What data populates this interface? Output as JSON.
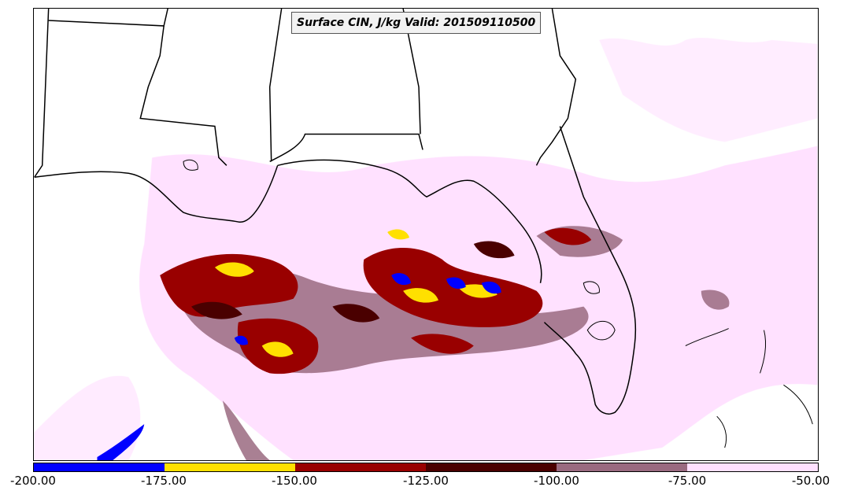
{
  "map": {
    "title": "Surface CIN, J/kg Valid: 201509110500",
    "legend": {
      "ticks": [
        "-200.00",
        "-175.00",
        "-150.00",
        "-125.00",
        "-100.00",
        "-75.00",
        "-50.00"
      ],
      "bins": [
        {
          "from": -200,
          "to": -175,
          "color": "#0000ff"
        },
        {
          "from": -175,
          "to": -150,
          "color": "#ffe000"
        },
        {
          "from": -150,
          "to": -125,
          "color": "#990000"
        },
        {
          "from": -125,
          "to": -100,
          "color": "#4a0000"
        },
        {
          "from": -100,
          "to": -75,
          "color": "#9a6a80"
        },
        {
          "from": -75,
          "to": -50,
          "color": "#ffe0ff"
        }
      ]
    }
  }
}
